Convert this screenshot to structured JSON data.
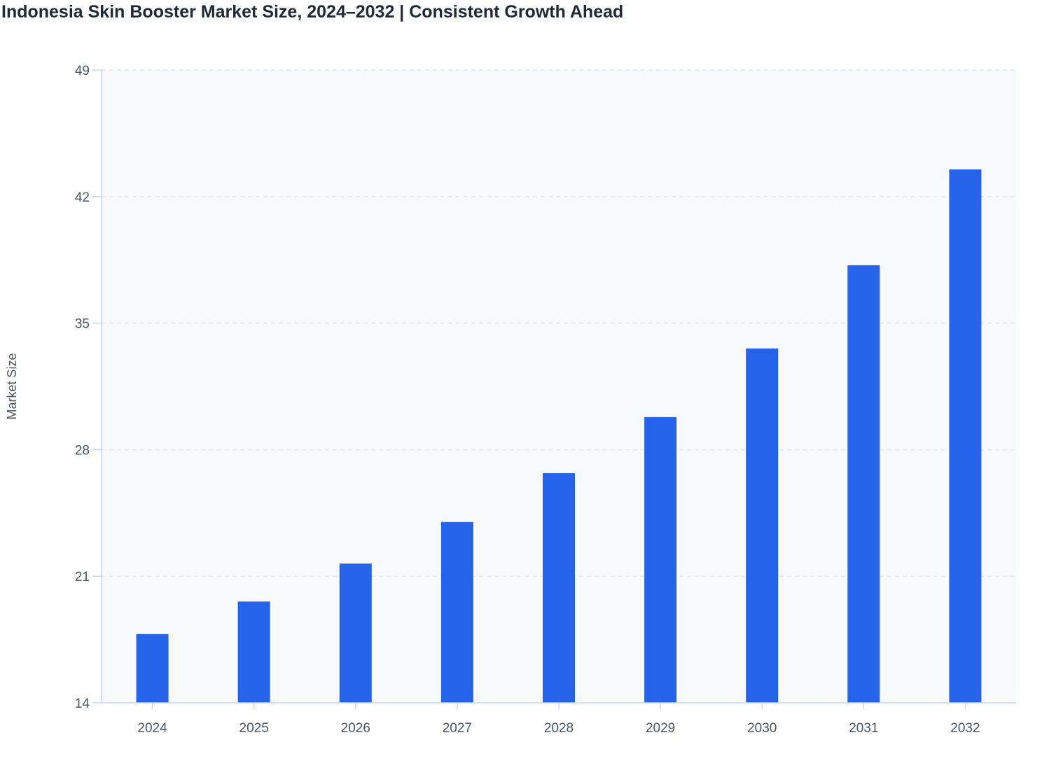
{
  "chart_data": {
    "type": "bar",
    "title": "Indonesia Skin Booster Market Size, 2024–2032 | Consistent Growth Ahead",
    "xlabel": "",
    "ylabel": "Market Size",
    "categories": [
      "2024",
      "2025",
      "2026",
      "2027",
      "2028",
      "2029",
      "2030",
      "2031",
      "2032"
    ],
    "values": [
      17.8,
      19.6,
      21.7,
      24.0,
      26.7,
      29.8,
      33.6,
      38.2,
      43.5
    ],
    "ylim": [
      14,
      49
    ],
    "yticks": [
      14,
      21,
      28,
      35,
      42,
      49
    ],
    "grid": true,
    "legend": "none",
    "colors": {
      "bar": "#2563eb",
      "plot_bg": "#f8f9fb",
      "axis": "#c7d2fe",
      "grid": "#e5e7eb"
    }
  }
}
